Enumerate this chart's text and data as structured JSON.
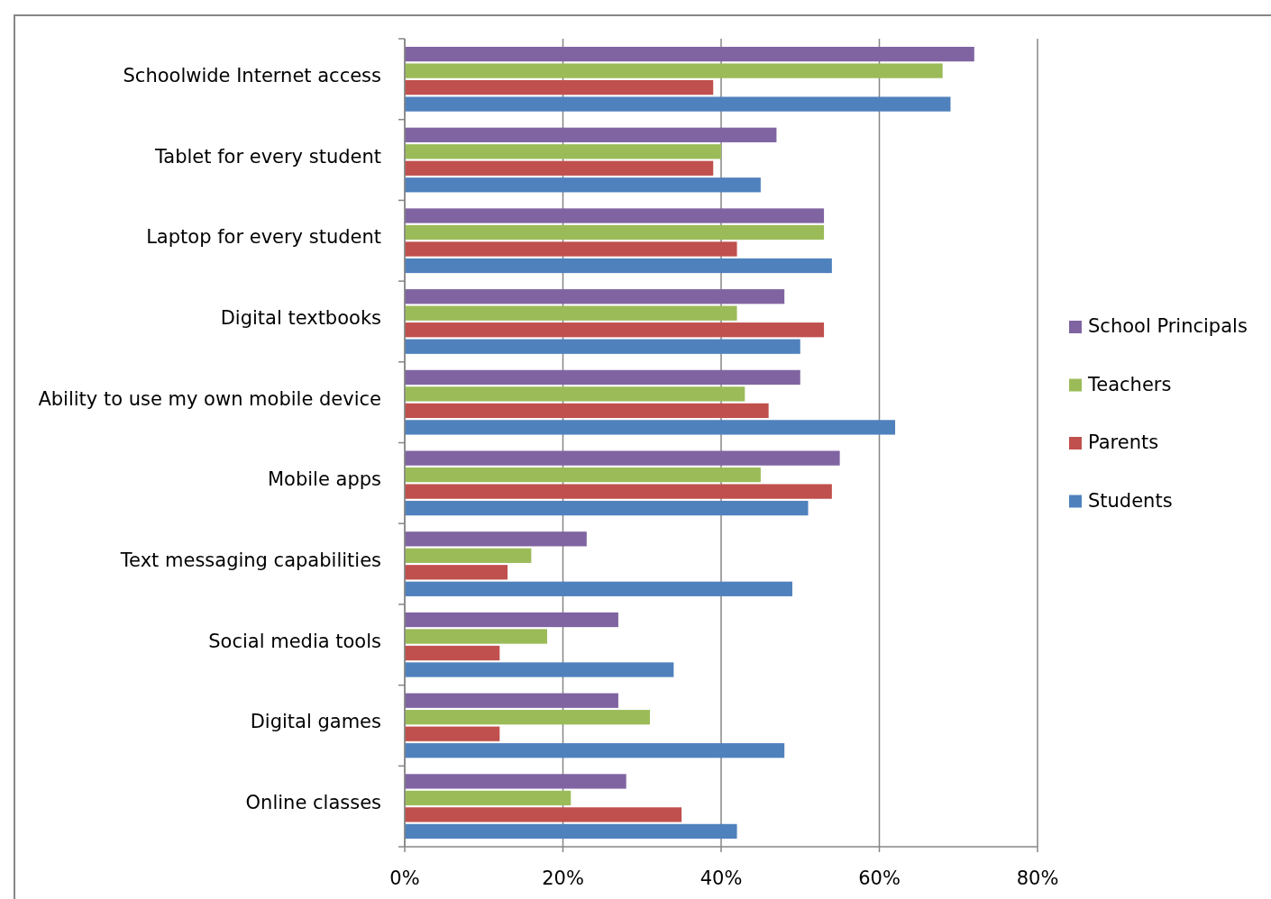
{
  "chart_data": {
    "type": "bar",
    "orientation": "horizontal",
    "categories": [
      "Schoolwide Internet access",
      "Tablet for every student",
      "Laptop for every student",
      "Digital textbooks",
      "Ability to use my own mobile device",
      "Mobile apps",
      "Text messaging capabilities",
      "Social media tools",
      "Digital games",
      "Online classes"
    ],
    "series": [
      {
        "name": "School Principals",
        "color": "#8064a2",
        "values": [
          72,
          47,
          53,
          48,
          50,
          55,
          23,
          27,
          27,
          28
        ]
      },
      {
        "name": "Teachers",
        "color": "#9bbb59",
        "values": [
          68,
          40,
          53,
          42,
          43,
          45,
          16,
          18,
          31,
          21
        ]
      },
      {
        "name": "Parents",
        "color": "#c0504d",
        "values": [
          39,
          39,
          42,
          53,
          46,
          54,
          13,
          12,
          12,
          35
        ]
      },
      {
        "name": "Students",
        "color": "#4f81bd",
        "values": [
          69,
          45,
          54,
          50,
          62,
          51,
          49,
          34,
          48,
          42
        ]
      }
    ],
    "xlim": [
      0,
      80
    ],
    "xticks": [
      {
        "value": 0,
        "label": "0%"
      },
      {
        "value": 20,
        "label": "20%"
      },
      {
        "value": 40,
        "label": "40%"
      },
      {
        "value": 60,
        "label": "60%"
      },
      {
        "value": 80,
        "label": "80%"
      }
    ],
    "grid": "x",
    "legend": "right"
  }
}
